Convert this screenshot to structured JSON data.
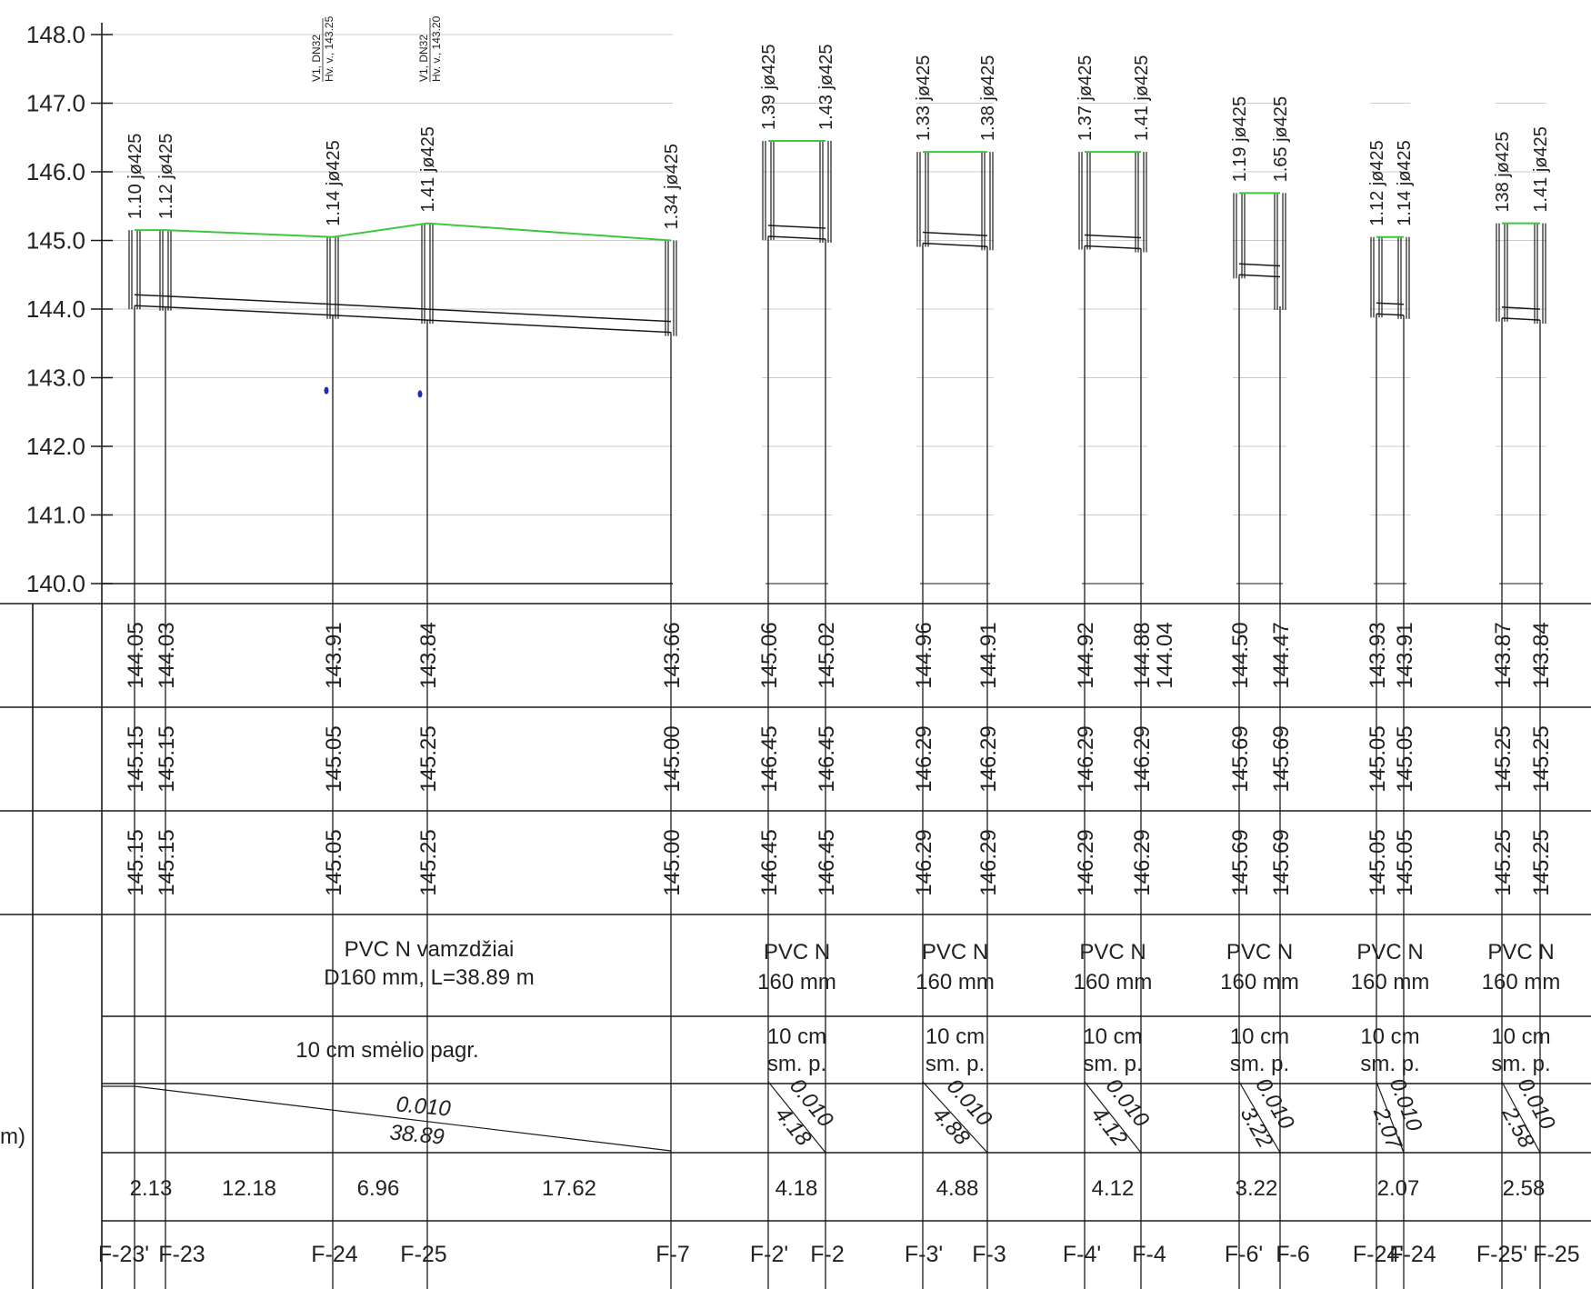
{
  "y_axis": {
    "ticks": [
      {
        "value": 148.0,
        "label": "148.0"
      },
      {
        "value": 147.0,
        "label": "147.0"
      },
      {
        "value": 146.0,
        "label": "146.0"
      },
      {
        "value": 145.0,
        "label": "145.0"
      },
      {
        "value": 144.0,
        "label": "144.0"
      },
      {
        "value": 143.0,
        "label": "143.0"
      },
      {
        "value": 142.0,
        "label": "142.0"
      },
      {
        "value": 141.0,
        "label": "141.0"
      },
      {
        "value": 140.0,
        "label": "140.0"
      }
    ]
  },
  "colors": {
    "ground_line": "#3cc83c",
    "lines": "#1a1a1a",
    "grid": "#cccccc",
    "marker": "#1f2bb3"
  },
  "wells": [
    {
      "name": "F-23'",
      "depth": "1.10 jø425",
      "invert": "144.05",
      "ground": "145.15",
      "design": "145.15"
    },
    {
      "name": "F-23",
      "depth": "1.12 jø425",
      "invert": "144.03",
      "ground": "145.15",
      "design": "145.15"
    },
    {
      "name": "F-24",
      "depth": "1.14 jø425",
      "invert": "143.91",
      "ground": "145.05",
      "design": "145.05"
    },
    {
      "name": "F-25",
      "depth": "1.41 jø425",
      "invert": "143.84",
      "ground": "145.25",
      "design": "145.25"
    },
    {
      "name": "F-7",
      "depth": "1.34 jø425",
      "invert": "143.66",
      "ground": "145.00",
      "design": "145.00"
    },
    {
      "name": "F-2'",
      "depth": "1.39 jø425",
      "invert": "145.06",
      "ground": "146.45",
      "design": "146.45"
    },
    {
      "name": "F-2",
      "depth": "1.43 jø425",
      "invert": "145.02",
      "ground": "146.45",
      "design": "146.45"
    },
    {
      "name": "F-3'",
      "depth": "1.33 jø425",
      "invert": "144.96",
      "ground": "146.29",
      "design": "146.29"
    },
    {
      "name": "F-3",
      "depth": "1.38 jø425",
      "invert": "144.91",
      "ground": "146.29",
      "design": "146.29"
    },
    {
      "name": "F-4'",
      "depth": "1.37 jø425",
      "invert": "144.92",
      "ground": "146.29",
      "design": "146.29"
    },
    {
      "name": "F-4",
      "depth": "1.41 jø425",
      "invert": "144.88",
      "ground": "146.29",
      "design": "146.29"
    },
    {
      "name": "F-6'",
      "depth": "1.19 jø425",
      "invert": "144.50",
      "ground": "145.69",
      "design": "145.69"
    },
    {
      "name": "F-6",
      "depth": "1.65 jø425",
      "invert": "144.47",
      "invert2": "144.04",
      "ground": "145.69",
      "design": "145.69"
    },
    {
      "name": "F-24'",
      "depth": "1.12 jø425",
      "invert": "143.93",
      "ground": "145.05",
      "design": "145.05"
    },
    {
      "name": "F-24",
      "depth": "1.14 jø425",
      "invert": "143.91",
      "ground": "145.05",
      "design": "145.05"
    },
    {
      "name": "F-25'",
      "depth": "138 jø425",
      "invert": "143.87",
      "ground": "145.25",
      "design": "145.25"
    },
    {
      "name": "F-25",
      "depth": "1.41 jø425",
      "invert": "143.84",
      "ground": "145.25",
      "design": "145.25"
    }
  ],
  "water_notes": [
    {
      "line1": "V1, DN32",
      "line2": "Hv. v., 143.25",
      "level": 143.25
    },
    {
      "line1": "V1, DN32",
      "line2": "Hv. v., 143.20",
      "level": 143.2
    }
  ],
  "pipe_row": {
    "main": [
      "PVC N vamzdžiai",
      "D160 mm, L=38.89 m"
    ],
    "branch": [
      "PVC N",
      "160 mm"
    ]
  },
  "bedding_row": {
    "main": "10 cm smėlio pagr.",
    "branch": [
      "10 cm",
      "sm. p."
    ]
  },
  "slope_row": {
    "main": {
      "slope": "0.010",
      "length": "38.89"
    },
    "branches": [
      {
        "slope": "0.010",
        "length": "4.18"
      },
      {
        "slope": "0.010",
        "length": "4.88"
      },
      {
        "slope": "0.010",
        "length": "4.12"
      },
      {
        "slope": "0.010",
        "length": "3.22"
      },
      {
        "slope": "0.010",
        "length": "2.07"
      },
      {
        "slope": "0.010",
        "length": "2.58"
      }
    ]
  },
  "distance_row": [
    "2.13",
    "12.18",
    "6.96",
    "17.62",
    "4.18",
    "4.88",
    "4.12",
    "3.22",
    "2.07",
    "2.58"
  ],
  "left_fragment": "m)"
}
